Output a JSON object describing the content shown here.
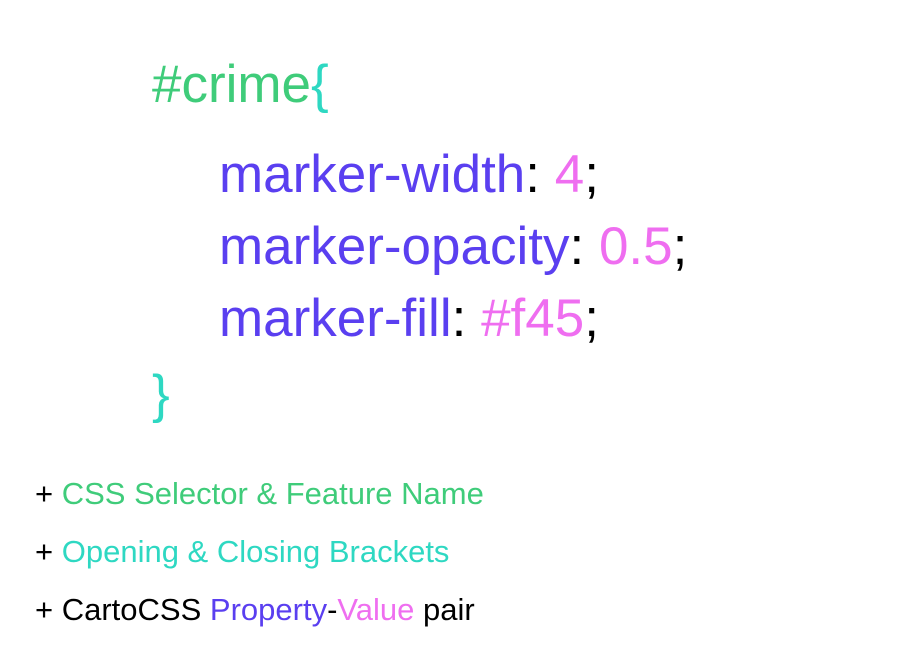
{
  "code": {
    "selector": "#crime",
    "open_bracket": "{",
    "close_bracket": "}",
    "properties": [
      {
        "name": "marker-width",
        "colon": ":",
        "value": "4",
        "semicolon": ";"
      },
      {
        "name": "marker-opacity",
        "colon": ":",
        "value": "0.5",
        "semicolon": ";"
      },
      {
        "name": "marker-fill",
        "colon": ":",
        "value": "#f45",
        "semicolon": ";"
      }
    ]
  },
  "legend": {
    "plus": "+",
    "selector_label": "CSS Selector & Feature Name",
    "brackets_label": "Opening & Closing Brackets",
    "cartocss_label": "CartoCSS",
    "property_label": "Property",
    "dash": "-",
    "value_label": "Value",
    "pair_label": "pair"
  },
  "colors": {
    "selector": "#3fcc7a",
    "bracket": "#2ed8c2",
    "property": "#5a3ff0",
    "value": "#ef6ef0",
    "punctuation": "#000000"
  }
}
